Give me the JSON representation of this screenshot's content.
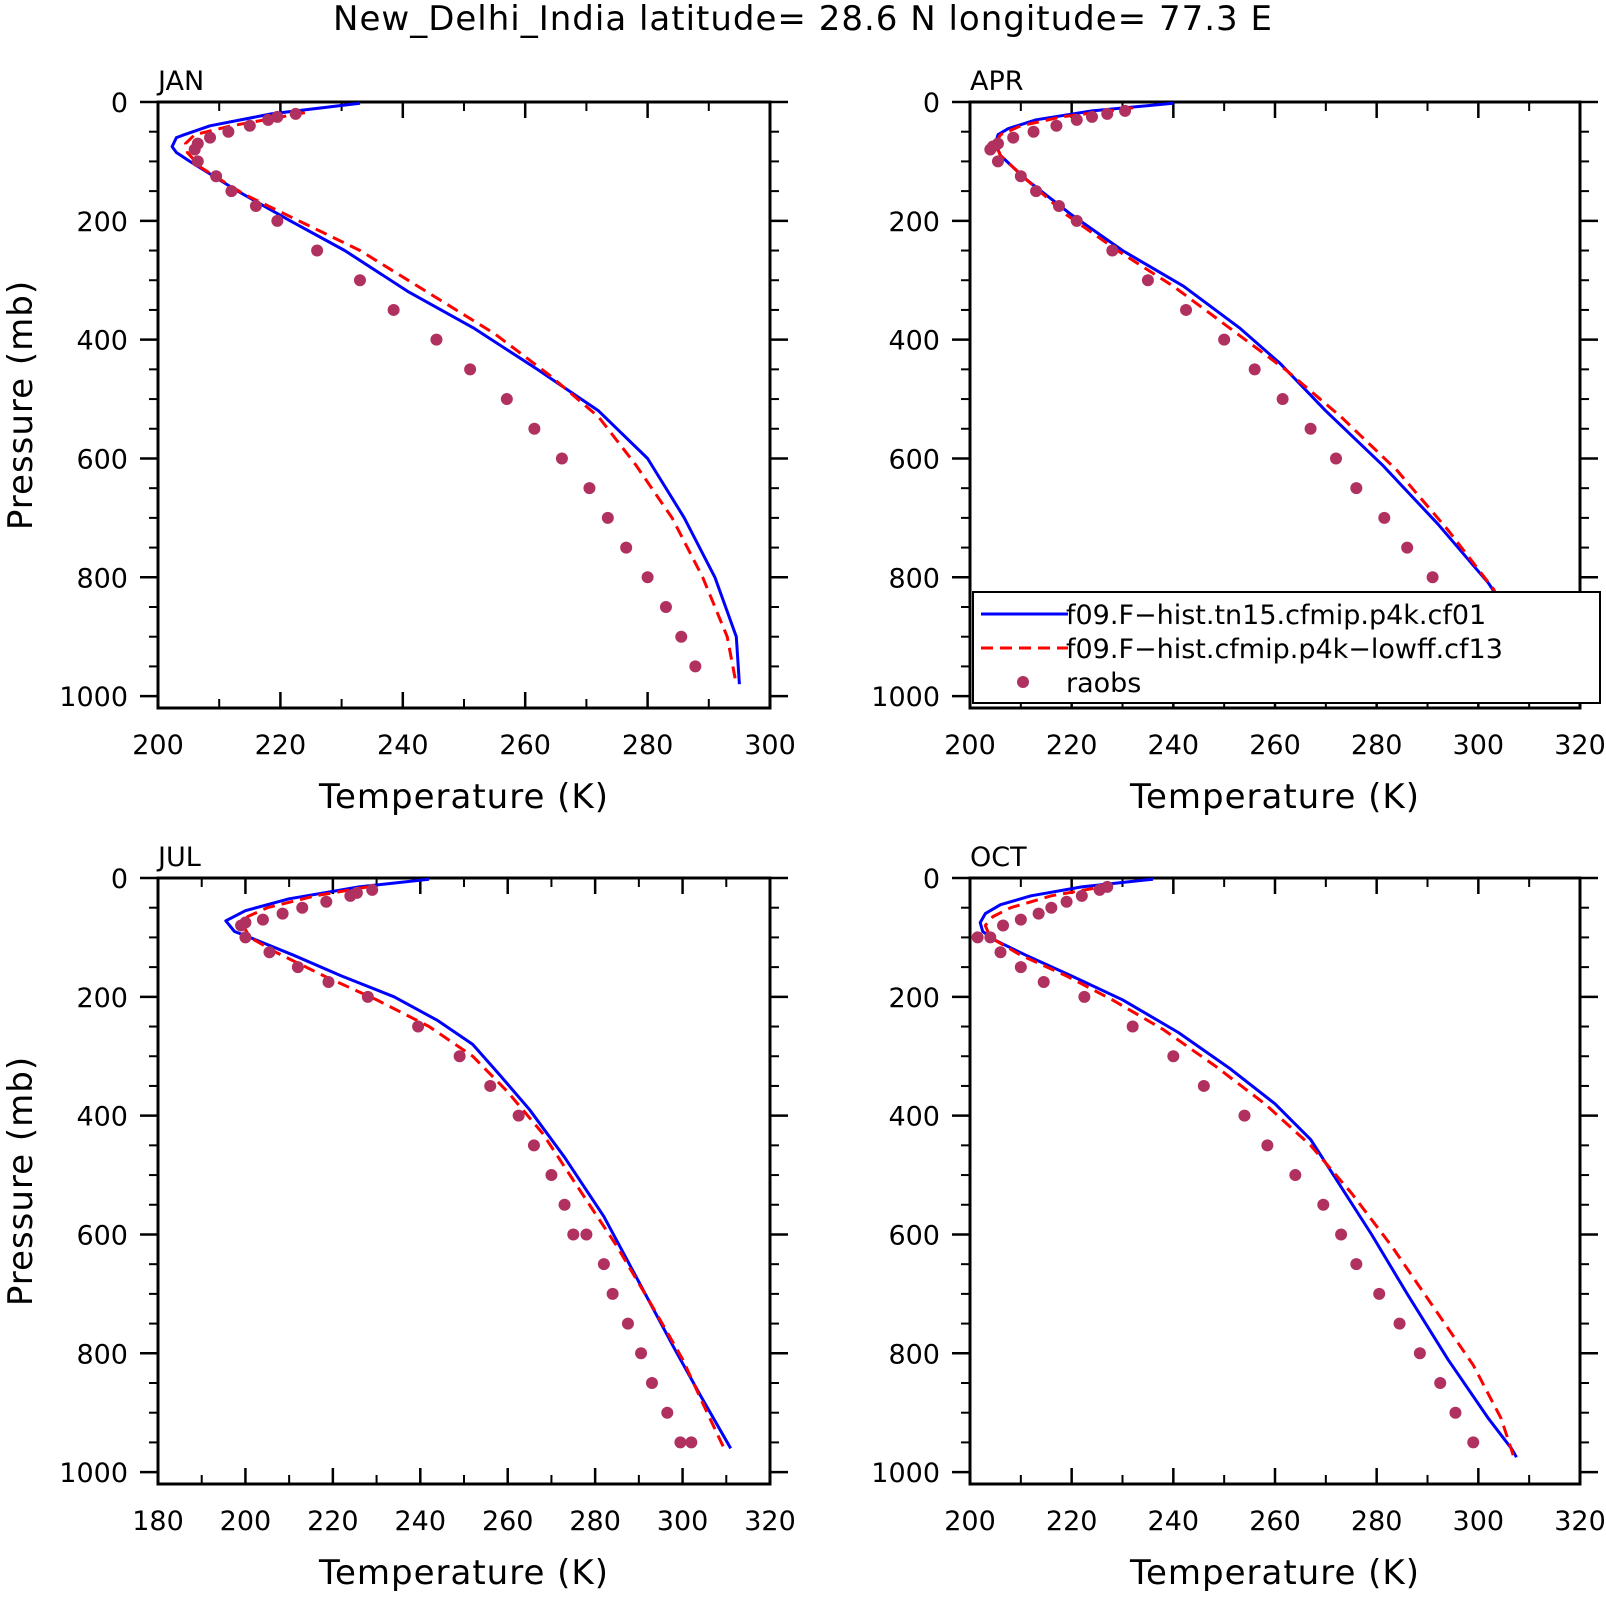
{
  "title": "New_Delhi_India  latitude= 28.6 N longitude= 77.3 E",
  "colors": {
    "model1": "#0000ff",
    "model2": "#ff0000",
    "raobs": "#b03060"
  },
  "legend": {
    "entries": [
      "f09.F−hist.tn15.cfmip.p4k.cf01",
      "f09.F−hist.cfmip.p4k−lowff.cf13",
      "raobs"
    ]
  },
  "chart_data": [
    {
      "type": "line",
      "panel": "JAN",
      "xlabel": "Temperature (K)",
      "ylabel": "Pressure (mb)",
      "xlim": [
        200,
        300
      ],
      "ylim": [
        1020,
        0
      ],
      "y_inverted": true,
      "xticks": [
        200,
        220,
        240,
        260,
        280,
        300
      ],
      "yticks": [
        0,
        200,
        400,
        600,
        800,
        1000
      ],
      "legend": "none",
      "series": [
        {
          "name": "f09.F−hist.tn15.cfmip.p4k.cf01",
          "style": "solid",
          "x": [
            233.0,
            218.5,
            208.5,
            204.3,
            203.0,
            202.3,
            203.0,
            205.2,
            213.0,
            221.6,
            230.5,
            241.0,
            251.5,
            262.0,
            272.0,
            280.0,
            286.0,
            291.0,
            294.5,
            295.0
          ],
          "y": [
            2,
            20,
            40,
            55,
            60,
            75,
            85,
            100,
            150,
            200,
            250,
            320,
            380,
            450,
            520,
            600,
            700,
            800,
            900,
            980
          ]
        },
        {
          "name": "f09.F−hist.cfmip.p4k−lowff.cf13",
          "style": "dashed",
          "x": [
            224.0,
            212.0,
            206.0,
            204.5,
            204.8,
            207.0,
            214.0,
            223.0,
            233.0,
            244.0,
            255.0,
            264.0,
            272.0,
            278.0,
            284.0,
            289.0,
            293.0,
            294.3
          ],
          "y": [
            18,
            40,
            55,
            70,
            85,
            110,
            155,
            200,
            250,
            320,
            390,
            460,
            530,
            610,
            700,
            800,
            900,
            970
          ]
        },
        {
          "name": "raobs",
          "style": "markers",
          "x": [
            222.5,
            219.5,
            218.0,
            215.0,
            211.5,
            208.5,
            206.5,
            206.0,
            206.5,
            209.5,
            212.0,
            216.0,
            219.5,
            226.0,
            233.0,
            238.5,
            245.5,
            251.0,
            257.0,
            261.5,
            266.0,
            270.5,
            273.5,
            276.5,
            280.0,
            283.0,
            285.5,
            287.8
          ],
          "y": [
            20,
            25,
            30,
            40,
            50,
            60,
            70,
            80,
            100,
            125,
            150,
            175,
            200,
            250,
            300,
            350,
            400,
            450,
            500,
            550,
            600,
            650,
            700,
            750,
            800,
            850,
            900,
            950
          ]
        }
      ]
    },
    {
      "type": "line",
      "panel": "APR",
      "xlabel": "Temperature (K)",
      "ylabel": "",
      "xlim": [
        200,
        320
      ],
      "ylim": [
        1020,
        0
      ],
      "y_inverted": true,
      "xticks": [
        200,
        220,
        240,
        260,
        280,
        300,
        320
      ],
      "yticks": [
        0,
        200,
        400,
        600,
        800,
        1000
      ],
      "legend": "bottom-right",
      "series": [
        {
          "name": "f09.F−hist.tn15.cfmip.p4k.cf01",
          "style": "solid",
          "x": [
            240.0,
            224.0,
            213.0,
            207.5,
            205.5,
            205.0,
            206.0,
            211.0,
            220.0,
            230.0,
            242.0,
            253.0,
            261.0,
            270.0,
            281.0,
            292.0,
            302.0,
            309.0,
            312.5,
            313.0
          ],
          "y": [
            2,
            15,
            30,
            45,
            55,
            70,
            90,
            130,
            190,
            250,
            310,
            380,
            440,
            520,
            610,
            710,
            810,
            900,
            960,
            975
          ]
        },
        {
          "name": "f09.F−hist.cfmip.p4k−lowff.cf13",
          "style": "dashed",
          "x": [
            232.0,
            218.0,
            210.0,
            206.0,
            205.0,
            206.0,
            211.0,
            219.0,
            229.0,
            240.0,
            251.0,
            262.0,
            273.0,
            284.0,
            294.0,
            303.0,
            308.5,
            310.5
          ],
          "y": [
            10,
            25,
            40,
            55,
            70,
            90,
            130,
            190,
            250,
            310,
            380,
            450,
            530,
            620,
            720,
            820,
            910,
            975
          ]
        },
        {
          "name": "raobs",
          "style": "markers",
          "x": [
            230.5,
            227.0,
            224.0,
            221.0,
            217.0,
            212.5,
            208.5,
            205.5,
            204.5,
            204.0,
            205.5,
            210.0,
            213.0,
            217.5,
            221.0,
            228.0,
            235.0,
            242.5,
            250.0,
            256.0,
            261.5,
            267.0,
            272.0,
            276.0,
            281.5,
            286.0,
            291.0,
            295.5,
            299.0,
            302.0
          ],
          "y": [
            15,
            20,
            25,
            30,
            40,
            50,
            60,
            70,
            75,
            80,
            100,
            125,
            150,
            175,
            200,
            250,
            300,
            350,
            400,
            450,
            500,
            550,
            600,
            650,
            700,
            750,
            800,
            850,
            900,
            950
          ]
        }
      ]
    },
    {
      "type": "line",
      "panel": "JUL",
      "xlabel": "Temperature (K)",
      "ylabel": "Pressure (mb)",
      "xlim": [
        180,
        320
      ],
      "ylim": [
        1020,
        0
      ],
      "y_inverted": true,
      "xticks": [
        180,
        200,
        220,
        240,
        260,
        280,
        300,
        320
      ],
      "yticks": [
        0,
        200,
        400,
        600,
        800,
        1000
      ],
      "legend": "none",
      "series": [
        {
          "name": "f09.F−hist.tn15.cfmip.p4k.cf01",
          "style": "solid",
          "x": [
            242.0,
            226.0,
            210.0,
            200.0,
            195.5,
            197.5,
            201.0,
            211.0,
            222.0,
            234.0,
            244.0,
            252.0,
            258.0,
            265.0,
            273.0,
            282.0,
            290.0,
            298.0,
            304.0,
            311.0
          ],
          "y": [
            2,
            15,
            35,
            55,
            72,
            90,
            100,
            130,
            165,
            200,
            240,
            280,
            330,
            390,
            470,
            570,
            680,
            790,
            870,
            960
          ]
        },
        {
          "name": "f09.F−hist.cfmip.p4k−lowff.cf13",
          "style": "dashed",
          "x": [
            228.0,
            216.0,
            205.0,
            200.5,
            199.5,
            201.0,
            207.0,
            218.0,
            230.0,
            242.0,
            252.0,
            260.0,
            268.0,
            276.0,
            285.0,
            293.0,
            300.0,
            305.0,
            309.5
          ],
          "y": [
            15,
            30,
            50,
            65,
            80,
            100,
            125,
            165,
            205,
            250,
            300,
            360,
            430,
            520,
            620,
            720,
            810,
            890,
            960
          ]
        },
        {
          "name": "raobs",
          "style": "markers",
          "x": [
            229.0,
            225.5,
            224.0,
            218.5,
            213.0,
            208.5,
            204.0,
            200.0,
            199.0,
            200.0,
            205.5,
            212.0,
            219.0,
            228.0,
            239.5,
            249.0,
            256.0,
            262.5,
            266.0,
            270.0,
            273.0,
            275.0,
            278.0,
            282.0,
            284.0,
            287.5,
            290.5,
            293.0,
            296.5,
            299.5,
            302.0
          ],
          "y": [
            20,
            25,
            30,
            40,
            50,
            60,
            70,
            75,
            80,
            100,
            125,
            150,
            175,
            200,
            250,
            300,
            350,
            400,
            450,
            500,
            550,
            600,
            600,
            650,
            700,
            750,
            800,
            850,
            900,
            950,
            950
          ]
        }
      ]
    },
    {
      "type": "line",
      "panel": "OCT",
      "xlabel": "Temperature (K)",
      "ylabel": "",
      "xlim": [
        200,
        320
      ],
      "ylim": [
        1020,
        0
      ],
      "y_inverted": true,
      "xticks": [
        200,
        220,
        240,
        260,
        280,
        300,
        320
      ],
      "yticks": [
        0,
        200,
        400,
        600,
        800,
        1000
      ],
      "legend": "none",
      "series": [
        {
          "name": "f09.F−hist.tn15.cfmip.p4k.cf01",
          "style": "solid",
          "x": [
            236.0,
            222.0,
            212.0,
            206.0,
            203.0,
            202.0,
            202.5,
            205.0,
            211.0,
            220.0,
            230.0,
            241.0,
            251.0,
            260.0,
            267.0,
            273.0,
            279.0,
            286.0,
            294.0,
            302.0,
            306.5,
            307.5
          ],
          "y": [
            2,
            15,
            30,
            45,
            60,
            75,
            90,
            105,
            130,
            165,
            205,
            260,
            320,
            380,
            440,
            520,
            600,
            700,
            810,
            910,
            960,
            975
          ]
        },
        {
          "name": "f09.F−hist.cfmip.p4k−lowff.cf13",
          "style": "dashed",
          "x": [
            228.0,
            216.0,
            208.0,
            204.5,
            203.0,
            204.0,
            210.0,
            219.0,
            228.0,
            238.0,
            248.0,
            258.0,
            267.0,
            275.0,
            283.0,
            291.0,
            299.0,
            304.5,
            307.0
          ],
          "y": [
            12,
            30,
            50,
            65,
            80,
            100,
            130,
            165,
            205,
            255,
            315,
            380,
            450,
            530,
            620,
            720,
            820,
            910,
            975
          ]
        },
        {
          "name": "raobs",
          "style": "markers",
          "x": [
            227.0,
            225.5,
            222.0,
            219.0,
            216.0,
            213.5,
            210.0,
            206.5,
            204.0,
            201.5,
            206.0,
            210.0,
            214.5,
            222.5,
            232.0,
            240.0,
            246.0,
            254.0,
            258.5,
            264.0,
            269.5,
            273.0,
            276.0,
            280.5,
            284.5,
            288.5,
            292.5,
            295.5,
            299.0
          ],
          "y": [
            15,
            20,
            30,
            40,
            50,
            60,
            70,
            80,
            100,
            100,
            125,
            150,
            175,
            200,
            250,
            300,
            350,
            400,
            450,
            500,
            550,
            600,
            650,
            700,
            750,
            800,
            850,
            900,
            950
          ]
        }
      ]
    }
  ]
}
